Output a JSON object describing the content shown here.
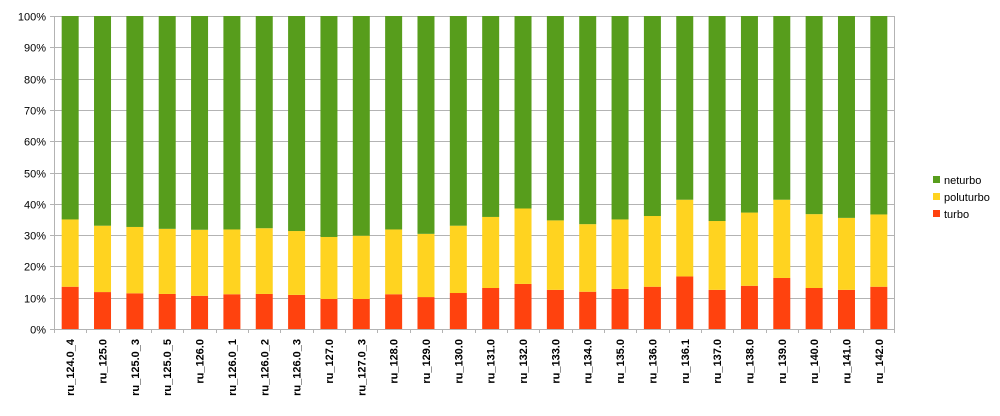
{
  "chart_data": {
    "type": "bar",
    "stacked": true,
    "percent": true,
    "categories": [
      "ru_124.0_4",
      "ru_125.0",
      "ru_125.0_3",
      "ru_125.0_5",
      "ru_126.0",
      "ru_126.0_1",
      "ru_126.0_2",
      "ru_126.0_3",
      "ru_127.0",
      "ru_127.0_3",
      "ru_128.0",
      "ru_129.0",
      "ru_130.0",
      "ru_131.0",
      "ru_132.0",
      "ru_133.0",
      "ru_134.0",
      "ru_135.0",
      "ru_136.0",
      "ru_136.1",
      "ru_137.0",
      "ru_138.0",
      "ru_139.0",
      "ru_140.0",
      "ru_141.0",
      "ru_142.0"
    ],
    "series": [
      {
        "name": "turbo",
        "color": "#ff420e",
        "values": [
          13.5,
          11.8,
          11.4,
          11.2,
          10.6,
          11.1,
          11.2,
          10.9,
          9.6,
          9.6,
          11.1,
          10.2,
          11.5,
          13.1,
          14.4,
          12.5,
          11.9,
          12.8,
          13.5,
          16.8,
          12.5,
          13.8,
          16.3,
          13.1,
          12.5,
          13.5
        ]
      },
      {
        "name": "poluturbo",
        "color": "#ffd320",
        "values": [
          21.5,
          21.2,
          21.2,
          20.8,
          21.1,
          20.7,
          21.0,
          20.4,
          19.8,
          20.2,
          20.7,
          20.2,
          21.5,
          22.7,
          24.1,
          22.2,
          21.6,
          22.2,
          22.6,
          24.5,
          22.0,
          23.4,
          25.0,
          23.6,
          23.0,
          23.1
        ]
      },
      {
        "name": "neturbo",
        "color": "#579d1c",
        "values": [
          65.0,
          67.0,
          67.4,
          68.0,
          68.3,
          68.2,
          67.8,
          68.7,
          70.6,
          70.2,
          68.2,
          69.6,
          67.0,
          64.2,
          61.5,
          65.3,
          66.5,
          65.0,
          63.9,
          58.7,
          65.5,
          62.8,
          58.7,
          63.3,
          64.5,
          63.4
        ]
      }
    ],
    "y_ticks": [
      "0%",
      "10%",
      "20%",
      "30%",
      "40%",
      "50%",
      "60%",
      "70%",
      "80%",
      "90%",
      "100%"
    ],
    "ylim": [
      0,
      100
    ],
    "grid": "horizontal",
    "legend": {
      "position": "right",
      "order": [
        "neturbo",
        "poluturbo",
        "turbo"
      ]
    },
    "title": "",
    "xlabel": "",
    "ylabel": ""
  }
}
